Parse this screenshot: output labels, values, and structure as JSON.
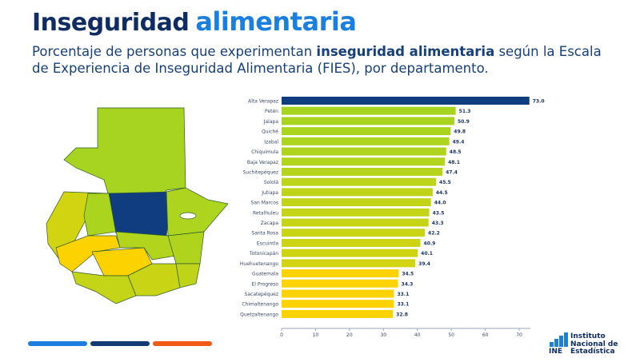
{
  "header": {
    "title_part1": "Inseguridad",
    "title_part2": "alimentaria",
    "subtitle_pre": "Porcentaje de personas que experimentan ",
    "subtitle_bold": "inseguridad alimentaria",
    "subtitle_post": " según la Escala de Experiencia de Inseguridad Alimentaria (FIES), por departamento."
  },
  "logo": {
    "text_line1": "Instituto",
    "text_line2": "Nacional de",
    "text_line3": "Estadística",
    "mark": "INE"
  },
  "colors": {
    "dark": "#0f3d80",
    "accent": "#1b7fe0",
    "orange": "#f05a14"
  },
  "chart_data": {
    "type": "bar",
    "orientation": "horizontal",
    "categories": [
      "Alta Verapaz",
      "Petén",
      "Jalapa",
      "Quiché",
      "Izabal",
      "Chiquimula",
      "Baja Verapaz",
      "Suchitepéquez",
      "Sololá",
      "Jutiapa",
      "San Marcos",
      "Retalhuleu",
      "Zacapa",
      "Santa Rosa",
      "Escuintla",
      "Totonicapán",
      "Huehuetenango",
      "Guatemala",
      "El Progreso",
      "Sacatepéquez",
      "Chimaltenango",
      "Quetzaltenango"
    ],
    "values": [
      73.0,
      51.3,
      50.9,
      49.8,
      49.4,
      48.5,
      48.1,
      47.4,
      45.5,
      44.5,
      44.0,
      43.5,
      43.3,
      42.2,
      40.9,
      40.1,
      39.4,
      34.5,
      34.3,
      33.1,
      33.1,
      32.8
    ],
    "colors": [
      "#0f3d80",
      "#a6d420",
      "#a8d420",
      "#abd41f",
      "#add41e",
      "#b0d41d",
      "#b3d41c",
      "#b6d41b",
      "#bcd419",
      "#bfd418",
      "#c1d417",
      "#c4d416",
      "#c6d415",
      "#c9d414",
      "#ccd413",
      "#cfd412",
      "#d2d411",
      "#fcd300",
      "#fcd300",
      "#fcd300",
      "#fcd300",
      "#fcd300"
    ],
    "xticks": [
      0,
      10,
      20,
      30,
      40,
      50,
      60,
      70
    ],
    "xlim": [
      0,
      73
    ],
    "xlabel": "",
    "ylabel": "",
    "title": ""
  }
}
